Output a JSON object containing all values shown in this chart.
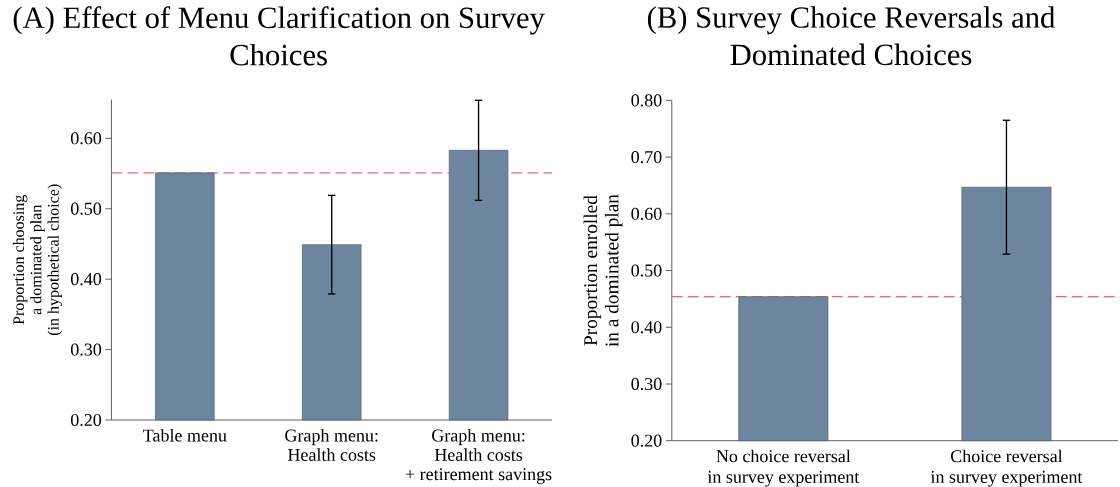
{
  "chart_data": [
    {
      "type": "bar",
      "title": "(A) Effect of Menu Clarification on Survey Choices",
      "ylabel": "Proportion choosing a dominated plan (in hypothetical choice)",
      "categories": [
        "Table menu",
        "Graph menu: Health costs",
        "Graph menu: Health costs + retirement savings"
      ],
      "values": [
        0.551,
        0.449,
        0.583
      ],
      "errors": [
        null,
        0.07,
        0.071
      ],
      "color": "#6e859f",
      "ylim": [
        0.2,
        0.655
      ],
      "yticks": [
        {
          "value": 0.2,
          "label": "0.20"
        },
        {
          "value": 0.3,
          "label": "0.30"
        },
        {
          "value": 0.4,
          "label": "0.40"
        },
        {
          "value": 0.5,
          "label": "0.50"
        },
        {
          "value": 0.6,
          "label": "0.60"
        }
      ],
      "ref_lines": [
        {
          "axis": "y",
          "value": 0.551,
          "color": "#e06c7f",
          "line_style": "dashed"
        }
      ]
    },
    {
      "type": "bar",
      "title": "(B) Survey Choice Reversals and Dominated Choices",
      "ylabel": "Proportion enrolled in a dominated plan",
      "categories": [
        "No choice reversal in survey experiment",
        "Choice reversal in survey experiment"
      ],
      "values": [
        0.454,
        0.647
      ],
      "errors": [
        null,
        0.118
      ],
      "color": "#6e859f",
      "ylim": [
        0.2,
        0.8
      ],
      "yticks": [
        {
          "value": 0.2,
          "label": "0.20"
        },
        {
          "value": 0.3,
          "label": "0.30"
        },
        {
          "value": 0.4,
          "label": "0.40"
        },
        {
          "value": 0.5,
          "label": "0.50"
        },
        {
          "value": 0.6,
          "label": "0.60"
        },
        {
          "value": 0.7,
          "label": "0.70"
        },
        {
          "value": 0.8,
          "label": "0.80"
        }
      ],
      "ref_lines": [
        {
          "axis": "y",
          "value": 0.454,
          "color": "#e06c7f",
          "line_style": "dashed"
        }
      ]
    }
  ]
}
